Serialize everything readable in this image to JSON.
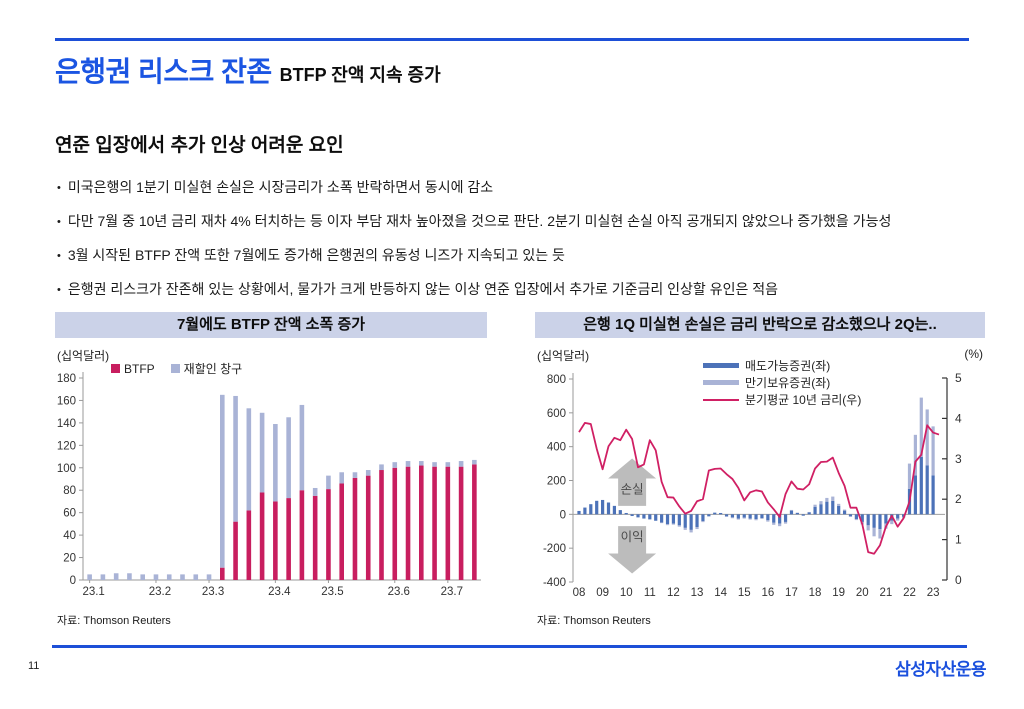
{
  "page": {
    "number": "11",
    "footer_logo": "삼성자산운용"
  },
  "header": {
    "title_main": "은행권 리스크 잔존",
    "title_sub": "BTFP 잔액 지속 증가"
  },
  "section": {
    "heading": "연준 입장에서 추가 인상 어려운 요인",
    "bullets": [
      "미국은행의 1분기 미실현 손실은 시장금리가 소폭 반락하면서 동시에 감소",
      "다만 7월 중 10년 금리 재차 4% 터치하는 등 이자 부담 재차 높아졌을 것으로 판단. 2분기 미실현 손실 아직 공개되지 않았으나 증가했을 가능성",
      "3월 시작된 BTFP 잔액 또한 7월에도 증가해 은행권의 유동성 니즈가 지속되고 있는 듯",
      "은행권 리스크가 잔존해 있는 상황에서, 물가가 크게 반등하지 않는 이상 연준 입장에서 추가로 기준금리 인상할 유인은 적음"
    ]
  },
  "left_panel": {
    "title": "7월에도 BTFP 잔액 소폭 증가",
    "unit": "(십억달러)",
    "source": "자료: Thomson Reuters"
  },
  "right_panel": {
    "title": "은행 1Q 미실현 손실은 금리 반락으로 감소했으나 2Q는..",
    "unit_left": "(십억달러)",
    "unit_right": "(%)",
    "source": "자료: Thomson Reuters"
  },
  "colors": {
    "accent_blue": "#1b55e2",
    "rule_blue": "#1d4fd7",
    "title_band": "#cbd2e8",
    "btfp_bar": "#c81e5f",
    "discount_window_bar": "#a9b3d6",
    "afs_bar": "#4c72b8",
    "htm_bar": "#a9b3d6",
    "rate_line": "#d02064",
    "arrow_gray": "#bcbcbc",
    "axis_gray": "#9a9a9a"
  },
  "chart_data": [
    {
      "type": "bar",
      "stacked": true,
      "title": "7월에도 BTFP 잔액 소폭 증가",
      "ylabel": "(십억달러)",
      "ylim": [
        0,
        180
      ],
      "y_step": 20,
      "grid": false,
      "legend_position": "top-left",
      "x_tick_labels": [
        "23.1",
        "23.2",
        "23.3",
        "23.4",
        "23.5",
        "23.6",
        "23.7"
      ],
      "x_tick_indices": [
        0,
        5,
        9,
        14,
        18,
        23,
        27
      ],
      "series": [
        {
          "name": "BTFP",
          "color": "#c81e5f",
          "values": [
            0,
            0,
            0,
            0,
            0,
            0,
            0,
            0,
            0,
            0,
            11,
            52,
            62,
            78,
            70,
            73,
            80,
            75,
            81,
            86,
            91,
            93,
            98,
            100,
            101,
            102,
            101,
            101,
            101,
            103
          ]
        },
        {
          "name": "재할인 창구",
          "color": "#a9b3d6",
          "values": [
            5,
            5,
            6,
            6,
            5,
            5,
            5,
            5,
            5,
            5,
            154,
            112,
            91,
            71,
            69,
            72,
            76,
            7,
            12,
            10,
            5,
            5,
            5,
            5,
            5,
            4,
            4,
            4,
            5,
            4
          ]
        }
      ],
      "source": "자료: Thomson Reuters"
    },
    {
      "type": "bar+line",
      "stacked": true,
      "title": "은행 1Q 미실현 손실은 금리 반락으로 감소했으나 2Q는..",
      "ylabel_left": "(십억달러)",
      "ylabel_right": "(%)",
      "ylim_left": [
        -400,
        800
      ],
      "y_step_left": 200,
      "ylim_right": [
        0,
        5
      ],
      "y_step_right": 1,
      "grid": false,
      "legend_position": "top-center",
      "x_year_labels": [
        "08",
        "09",
        "10",
        "11",
        "12",
        "13",
        "14",
        "15",
        "16",
        "17",
        "18",
        "19",
        "20",
        "21",
        "22",
        "23"
      ],
      "quarters_per_year": 4,
      "series": [
        {
          "name": "매도가능증권(좌)",
          "axis": "left",
          "kind": "bar",
          "color": "#4c72b8",
          "values": [
            20,
            40,
            60,
            80,
            85,
            70,
            50,
            25,
            8,
            -10,
            -18,
            -25,
            -30,
            -38,
            -48,
            -58,
            -55,
            -65,
            -80,
            -92,
            -75,
            -40,
            -12,
            10,
            8,
            -12,
            -18,
            -25,
            -20,
            -25,
            -28,
            -22,
            -35,
            -50,
            -55,
            -45,
            22,
            8,
            -8,
            12,
            45,
            60,
            75,
            80,
            50,
            22,
            -12,
            -28,
            -45,
            -65,
            -80,
            -88,
            -55,
            -38,
            -25,
            -15,
            150,
            230,
            340,
            290,
            230
          ]
        },
        {
          "name": "만기보유증권(좌)",
          "axis": "left",
          "kind": "bar",
          "color": "#a9b3d6",
          "values": [
            0,
            0,
            0,
            0,
            0,
            0,
            0,
            0,
            0,
            0,
            0,
            0,
            0,
            0,
            -4,
            -6,
            -6,
            -8,
            -12,
            -15,
            -12,
            -6,
            0,
            0,
            0,
            -3,
            -5,
            -6,
            -5,
            -6,
            -7,
            -5,
            -8,
            -12,
            -15,
            -10,
            4,
            2,
            0,
            2,
            12,
            18,
            22,
            25,
            12,
            6,
            -3,
            -6,
            -15,
            -30,
            -50,
            -55,
            -30,
            -20,
            -12,
            -6,
            150,
            240,
            350,
            330,
            290
          ]
        },
        {
          "name": "분기평균 10년 금리(우)",
          "axis": "right",
          "kind": "line",
          "color": "#d02064",
          "values": [
            3.66,
            3.89,
            3.86,
            3.25,
            2.74,
            3.31,
            3.52,
            3.46,
            3.72,
            3.49,
            2.79,
            2.86,
            3.46,
            3.21,
            2.43,
            2.05,
            2.04,
            1.82,
            1.64,
            1.71,
            1.95,
            2.0,
            2.71,
            2.75,
            2.76,
            2.62,
            2.5,
            2.28,
            1.97,
            2.17,
            2.22,
            2.19,
            1.92,
            1.75,
            1.56,
            2.13,
            2.44,
            2.26,
            2.24,
            2.37,
            2.76,
            2.92,
            2.93,
            3.03,
            2.65,
            2.33,
            1.79,
            1.79,
            1.38,
            0.69,
            0.65,
            0.86,
            1.32,
            1.59,
            1.32,
            1.53,
            1.94,
            2.93,
            3.1,
            3.83,
            3.65,
            3.6
          ]
        }
      ],
      "annotations": [
        {
          "text": "손실",
          "shape": "block-arrow-up"
        },
        {
          "text": "이익",
          "shape": "block-arrow-down"
        }
      ],
      "source": "자료: Thomson Reuters"
    }
  ]
}
